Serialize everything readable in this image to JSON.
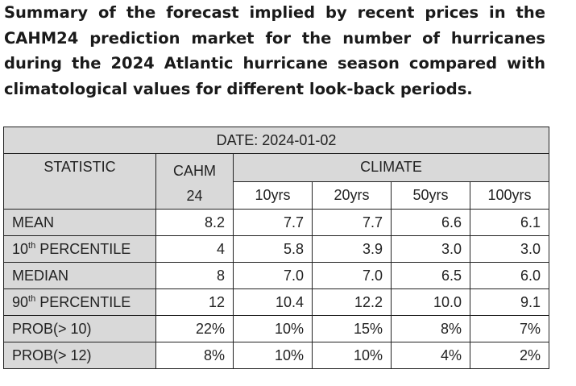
{
  "caption": "Summary of the forecast implied by recent prices in the CAHM24 prediction market for the number of hurricanes during the 2024 Atlantic hurricane season compared with climatological values for different look-back periods.",
  "table": {
    "date_label": "DATE: 2024-01-02",
    "col_statistic": "STATISTIC",
    "col_cahm_line1": "CAHM",
    "col_cahm_line2": "24",
    "col_climate": "CLIMATE",
    "periods": [
      "10yrs",
      "20yrs",
      "50yrs",
      "100yrs"
    ],
    "rows": [
      {
        "label": "MEAN",
        "sup": "",
        "suffix": "",
        "cahm": "8.2",
        "climate": [
          "7.7",
          "7.7",
          "6.6",
          "6.1"
        ]
      },
      {
        "label": "10",
        "sup": "th",
        "suffix": " PERCENTILE",
        "cahm": "4",
        "climate": [
          "5.8",
          "3.9",
          "3.0",
          "3.0"
        ]
      },
      {
        "label": "MEDIAN",
        "sup": "",
        "suffix": "",
        "cahm": "8",
        "climate": [
          "7.0",
          "7.0",
          "6.5",
          "6.0"
        ]
      },
      {
        "label": "90",
        "sup": "th",
        "suffix": " PERCENTILE",
        "cahm": "12",
        "climate": [
          "10.4",
          "12.2",
          "10.0",
          "9.1"
        ]
      },
      {
        "label": "PROB(> 10)",
        "sup": "",
        "suffix": "",
        "cahm": "22%",
        "climate": [
          "10%",
          "15%",
          "8%",
          "7%"
        ]
      },
      {
        "label": "PROB(> 12)",
        "sup": "",
        "suffix": "",
        "cahm": "8%",
        "climate": [
          "10%",
          "10%",
          "4%",
          "2%"
        ]
      }
    ]
  },
  "colors": {
    "header_bg": "#d9d9d9",
    "border": "#222222",
    "text": "#222222"
  }
}
